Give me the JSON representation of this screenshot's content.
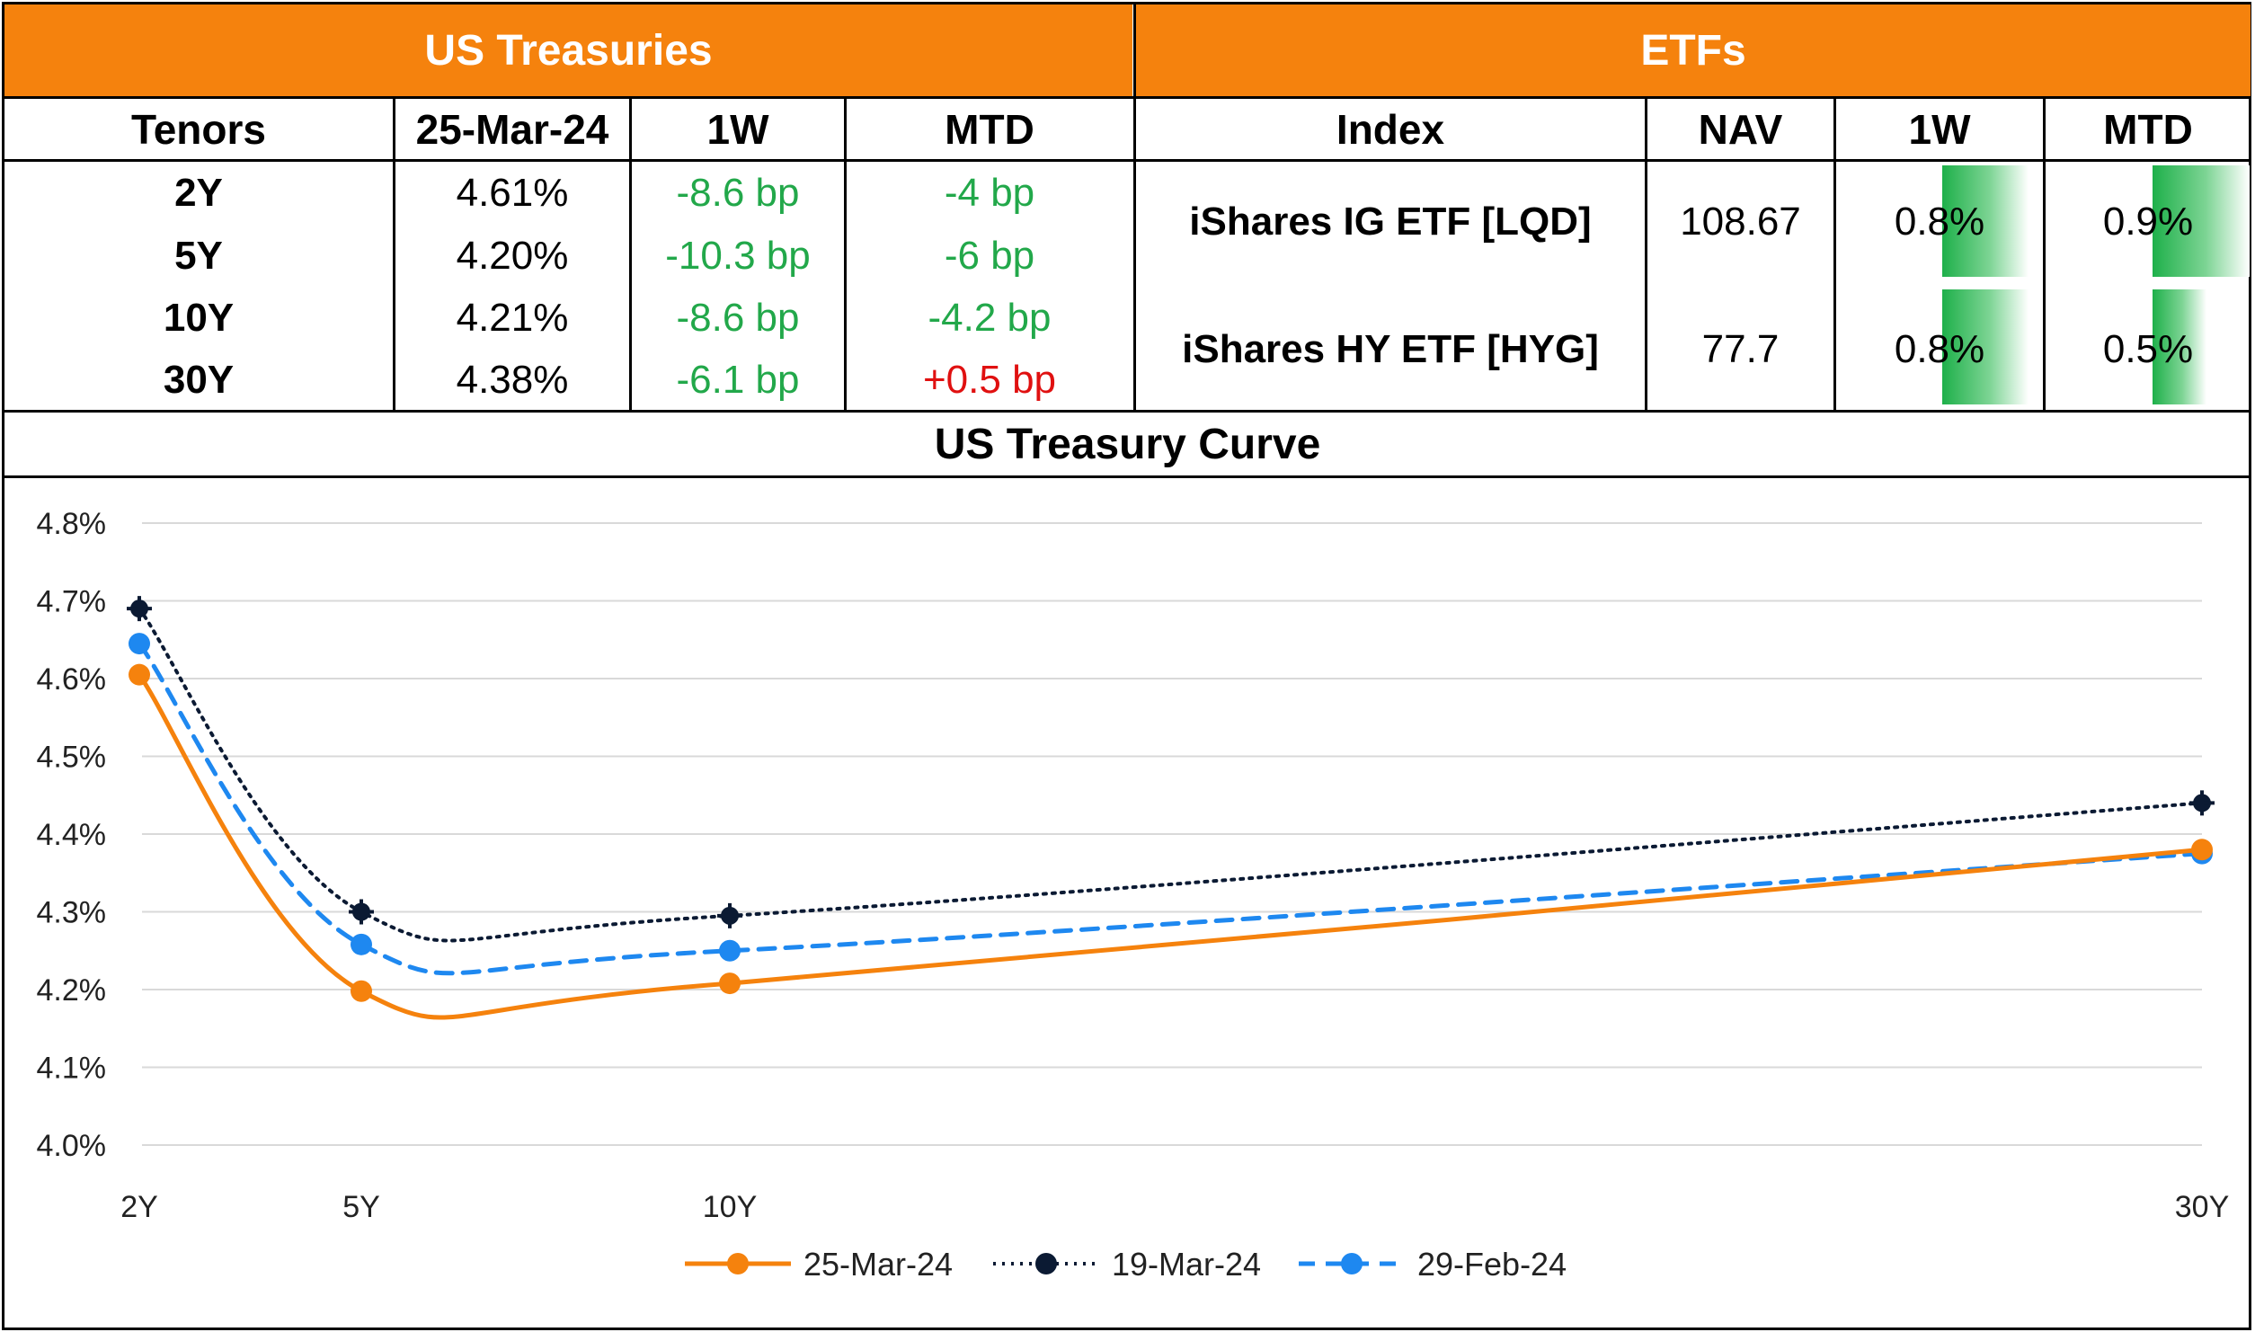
{
  "treasuries": {
    "title": "US Treasuries",
    "headers": [
      "Tenors",
      "25-Mar-24",
      "1W",
      "MTD"
    ],
    "rows": [
      {
        "tenor": "2Y",
        "yield": "4.61%",
        "w1": "-8.6 bp",
        "mtd": "-4 bp",
        "w1_color": "green",
        "mtd_color": "green"
      },
      {
        "tenor": "5Y",
        "yield": "4.20%",
        "w1": "-10.3 bp",
        "mtd": "-6 bp",
        "w1_color": "green",
        "mtd_color": "green"
      },
      {
        "tenor": "10Y",
        "yield": "4.21%",
        "w1": "-8.6 bp",
        "mtd": "-4.2 bp",
        "w1_color": "green",
        "mtd_color": "green"
      },
      {
        "tenor": "30Y",
        "yield": "4.38%",
        "w1": "-6.1 bp",
        "mtd": "+0.5 bp",
        "w1_color": "green",
        "mtd_color": "red"
      }
    ]
  },
  "etfs": {
    "title": "ETFs",
    "headers": [
      "Index",
      "NAV",
      "1W",
      "MTD"
    ],
    "rows": [
      {
        "name": "iShares IG ETF [LQD]",
        "nav": "108.67",
        "w1": "0.8%",
        "mtd": "0.9%",
        "w1_value": 0.8,
        "mtd_value": 0.9
      },
      {
        "name": "iShares HY ETF [HYG]",
        "nav": "77.7",
        "w1": "0.8%",
        "mtd": "0.5%",
        "w1_value": 0.8,
        "mtd_value": 0.5
      }
    ]
  },
  "colors": {
    "header_orange": "#f5820d",
    "positive_green": "#22a84a",
    "negative_red": "#e01010",
    "bar_green": "#1eb04a"
  },
  "chart_data": {
    "type": "line",
    "title": "US Treasury Curve",
    "x": [
      "2Y",
      "5Y",
      "10Y",
      "30Y"
    ],
    "x_years": [
      2,
      5,
      10,
      30
    ],
    "ylim": [
      4.0,
      4.8
    ],
    "y_ticks": [
      "4.0%",
      "4.1%",
      "4.2%",
      "4.3%",
      "4.4%",
      "4.5%",
      "4.6%",
      "4.7%",
      "4.8%"
    ],
    "grid": true,
    "legend_position": "bottom",
    "series": [
      {
        "name": "25-Mar-24",
        "values": [
          4.605,
          4.198,
          4.208,
          4.38
        ],
        "color": "#f5820d",
        "style": "solid"
      },
      {
        "name": "19-Mar-24",
        "values": [
          4.69,
          4.3,
          4.295,
          4.44
        ],
        "color": "#0b1a33",
        "style": "dotted"
      },
      {
        "name": "29-Feb-24",
        "values": [
          4.645,
          4.258,
          4.25,
          4.375
        ],
        "color": "#1e88f0",
        "style": "dashed"
      }
    ]
  }
}
